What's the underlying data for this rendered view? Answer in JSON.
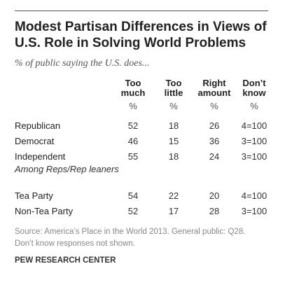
{
  "chart_data": {
    "type": "table",
    "title": "Modest Partisan Differences in Views of U.S. Role in Solving World Problems",
    "subtitle": "% of public saying the U.S. does...",
    "columns": [
      {
        "l1": "Too",
        "l2": "much"
      },
      {
        "l1": "Too",
        "l2": "little"
      },
      {
        "l1": "Right",
        "l2": "amount"
      },
      {
        "l1": "Don’t",
        "l2": "know"
      }
    ],
    "unit_row": [
      "%",
      "%",
      "%",
      "%"
    ],
    "rows": [
      {
        "label": "Republican",
        "values": [
          "52",
          "18",
          "26",
          "4=100"
        ]
      },
      {
        "label": "Democrat",
        "values": [
          "46",
          "15",
          "36",
          "3=100"
        ]
      },
      {
        "label": "Independent",
        "values": [
          "55",
          "18",
          "24",
          "3=100"
        ]
      }
    ],
    "section_label": "Among Reps/Rep leaners",
    "section_rows": [
      {
        "label": "Tea Party",
        "values": [
          "54",
          "22",
          "20",
          "4=100"
        ]
      },
      {
        "label": "Non-Tea Party",
        "values": [
          "52",
          "17",
          "28",
          "3=100"
        ]
      }
    ],
    "source": "Source: America’s Place in the World 2013. General public: Q28.",
    "note": "Don’t know responses not shown.",
    "brand": "PEW RESEARCH CENTER"
  }
}
